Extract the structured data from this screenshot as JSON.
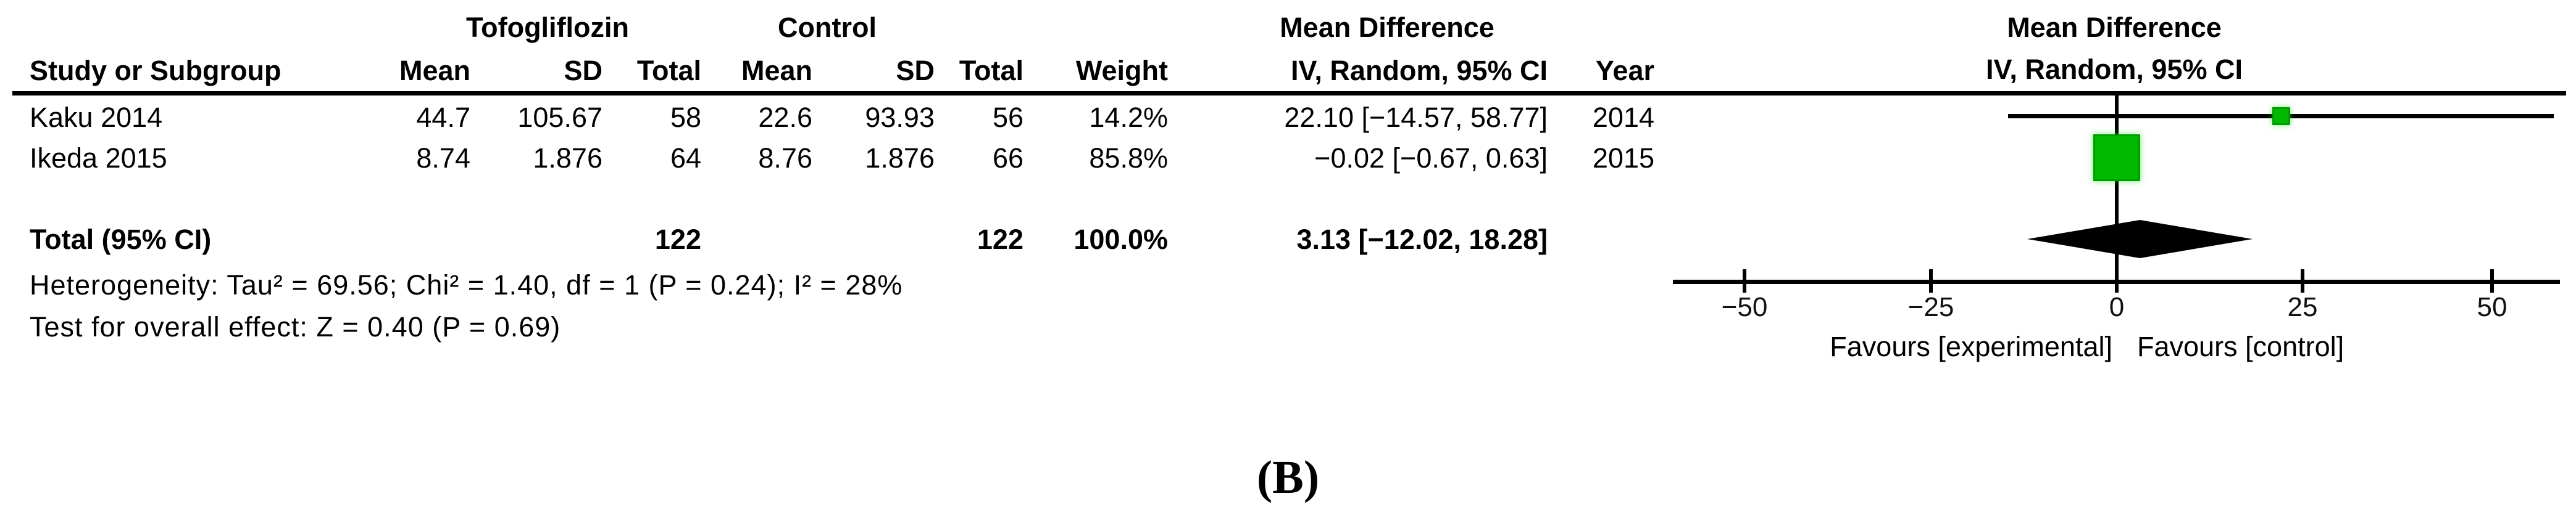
{
  "table": {
    "group_headers": {
      "experimental": "Tofogliflozin",
      "control": "Control",
      "effect": "Mean Difference"
    },
    "columns": {
      "study": "Study or Subgroup",
      "mean": "Mean",
      "sd": "SD",
      "total": "Total",
      "mean2": "Mean",
      "sd2": "SD",
      "total2": "Total",
      "weight": "Weight",
      "ci": "IV, Random, 95% CI",
      "year": "Year"
    },
    "rows": [
      {
        "study": "Kaku 2014",
        "mean_e": "44.7",
        "sd_e": "105.67",
        "total_e": "58",
        "mean_c": "22.6",
        "sd_c": "93.93",
        "total_c": "56",
        "weight": "14.2%",
        "ci": "22.10 [−14.57, 58.77]",
        "year": "2014"
      },
      {
        "study": "Ikeda 2015",
        "mean_e": "8.74",
        "sd_e": "1.876",
        "total_e": "64",
        "mean_c": "8.76",
        "sd_c": "1.876",
        "total_c": "66",
        "weight": "85.8%",
        "ci": "−0.02 [−0.67, 0.63]",
        "year": "2015"
      }
    ],
    "total_row": {
      "label": "Total (95% CI)",
      "total_e": "122",
      "total_c": "122",
      "weight": "100.0%",
      "ci": "3.13 [−12.02, 18.28]"
    },
    "heterogeneity": "Heterogeneity: Tau² = 69.56; Chi² = 1.40, df = 1 (P = 0.24); I² = 28%",
    "overall_effect": "Test for overall effect: Z = 0.40 (P = 0.69)"
  },
  "plot": {
    "header_line1": "Mean Difference",
    "header_line2": "IV, Random, 95% CI",
    "tick_labels": [
      "−50",
      "−25",
      "0",
      "25",
      "50"
    ],
    "marker_color": "#00b800",
    "diamond_color": "#000000"
  },
  "figure_label": "(B)",
  "chart_data": {
    "type": "forest",
    "effect_measure": "Mean Difference, IV, Random, 95% CI",
    "studies": [
      {
        "study": "Kaku 2014",
        "year": 2014,
        "mean_e": 44.7,
        "sd_e": 105.67,
        "total_e": 58,
        "mean_c": 22.6,
        "sd_c": 93.93,
        "total_c": 56,
        "weight_pct": 14.2,
        "md": 22.1,
        "ci_low": -14.57,
        "ci_high": 58.77
      },
      {
        "study": "Ikeda 2015",
        "year": 2015,
        "mean_e": 8.74,
        "sd_e": 1.876,
        "total_e": 64,
        "mean_c": 8.76,
        "sd_c": 1.876,
        "total_c": 66,
        "weight_pct": 85.8,
        "md": -0.02,
        "ci_low": -0.67,
        "ci_high": 0.63
      }
    ],
    "total": {
      "total_e": 122,
      "total_c": 122,
      "weight_pct": 100.0,
      "md": 3.13,
      "ci_low": -12.02,
      "ci_high": 18.28
    },
    "heterogeneity": {
      "tau2": 69.56,
      "chi2": 1.4,
      "df": 1,
      "p": 0.24,
      "i2_pct": 28
    },
    "overall_effect": {
      "z": 0.4,
      "p": 0.69
    },
    "axis": {
      "ticks": [
        -50,
        -25,
        0,
        25,
        50
      ],
      "xlim": [
        -59.5,
        59.5
      ],
      "left_label": "Favours [experimental]",
      "right_label": "Favours [control]"
    }
  }
}
